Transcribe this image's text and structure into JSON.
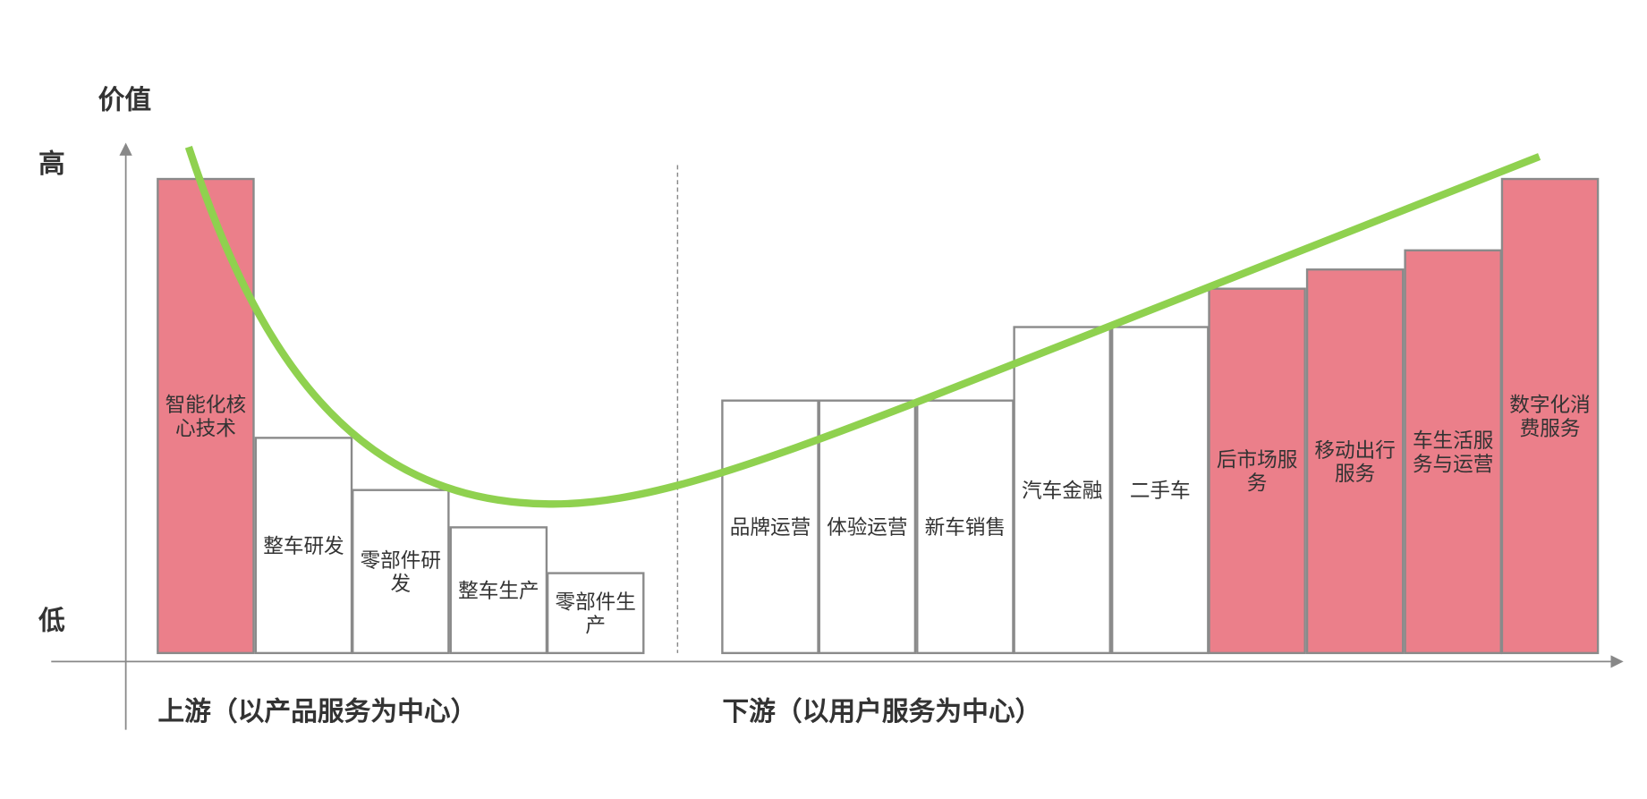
{
  "axis": {
    "title": "价值",
    "high": "高",
    "low": "低"
  },
  "sections": [
    {
      "label": "上游（以产品服务为中心）"
    },
    {
      "label": "下游（以用户服务为中心）"
    }
  ],
  "nodes": [
    {
      "lines": [
        "智能化核",
        "心技术"
      ]
    },
    {
      "lines": [
        "整车研发"
      ]
    },
    {
      "lines": [
        "零部件研",
        "发"
      ]
    },
    {
      "lines": [
        "整车生产"
      ]
    },
    {
      "lines": [
        "零部件生",
        "产"
      ]
    },
    {
      "lines": [
        "品牌运营"
      ]
    },
    {
      "lines": [
        "体验运营"
      ]
    },
    {
      "lines": [
        "新车销售"
      ]
    },
    {
      "lines": [
        "汽车金融"
      ]
    },
    {
      "lines": [
        "二手车"
      ]
    },
    {
      "lines": [
        "后市场服",
        "务"
      ]
    },
    {
      "lines": [
        "移动出行",
        "服务"
      ]
    },
    {
      "lines": [
        "车生活服",
        "务与运营"
      ]
    },
    {
      "lines": [
        "数字化消",
        "费服务"
      ]
    }
  ]
}
